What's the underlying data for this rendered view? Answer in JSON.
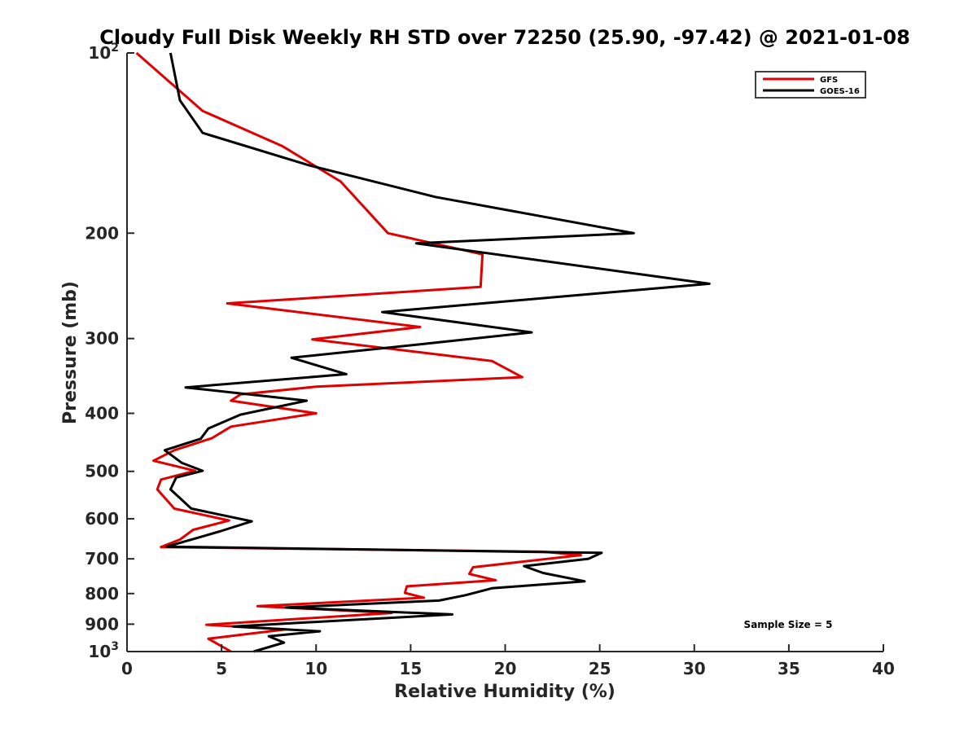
{
  "chart_data": {
    "type": "line",
    "title": "Cloudy Full Disk Weekly RH STD over 72250 (25.90, -97.42) @ 2021-01-08",
    "xlabel": "Relative Humidity (%)",
    "ylabel": "Pressure (mb)",
    "xlim": [
      0,
      40
    ],
    "ylim": [
      100,
      1000
    ],
    "yscale": "log",
    "y_reversed": true,
    "grid": false,
    "legend_position": "top-right",
    "x_ticks": [
      "0",
      "5",
      "10",
      "15",
      "20",
      "25",
      "30",
      "35",
      "40"
    ],
    "y_ticks": [
      {
        "value": 100,
        "base": "10",
        "exp": "2"
      },
      {
        "value": 200,
        "label": "200"
      },
      {
        "value": 300,
        "label": "300"
      },
      {
        "value": 400,
        "label": "400"
      },
      {
        "value": 500,
        "label": "500"
      },
      {
        "value": 600,
        "label": "600"
      },
      {
        "value": 700,
        "label": "700"
      },
      {
        "value": 800,
        "label": "800"
      },
      {
        "value": 900,
        "label": "900"
      },
      {
        "value": 1000,
        "base": "10",
        "exp": "3"
      }
    ],
    "annotation": "Sample Size = 5",
    "series": [
      {
        "name": "GFS",
        "color": "#e00000",
        "points": [
          [
            0.5,
            100
          ],
          [
            4.0,
            125
          ],
          [
            8.2,
            143
          ],
          [
            11.3,
            164
          ],
          [
            13.8,
            200
          ],
          [
            18.8,
            217
          ],
          [
            18.7,
            246
          ],
          [
            5.3,
            262
          ],
          [
            15.5,
            287
          ],
          [
            9.8,
            301
          ],
          [
            19.3,
            327
          ],
          [
            20.9,
            348
          ],
          [
            10.0,
            361
          ],
          [
            6.0,
            372
          ],
          [
            5.5,
            381
          ],
          [
            10.0,
            400
          ],
          [
            5.5,
            421
          ],
          [
            4.5,
            440
          ],
          [
            2.5,
            461
          ],
          [
            1.4,
            480
          ],
          [
            3.6,
            499
          ],
          [
            1.8,
            516
          ],
          [
            1.6,
            536
          ],
          [
            2.5,
            577
          ],
          [
            5.4,
            604
          ],
          [
            3.5,
            626
          ],
          [
            2.8,
            650
          ],
          [
            1.8,
            669
          ],
          [
            22.0,
            681
          ],
          [
            24.0,
            690
          ],
          [
            18.3,
            723
          ],
          [
            18.1,
            742
          ],
          [
            19.5,
            760
          ],
          [
            14.8,
            778
          ],
          [
            14.7,
            798
          ],
          [
            15.7,
            813
          ],
          [
            6.9,
            840
          ],
          [
            14.0,
            862
          ],
          [
            4.2,
            902
          ],
          [
            8.4,
            918
          ],
          [
            4.3,
            952
          ],
          [
            5.5,
            1000
          ]
        ]
      },
      {
        "name": "GOES-16",
        "color": "#000000",
        "points": [
          [
            2.3,
            100
          ],
          [
            2.8,
            120
          ],
          [
            4.0,
            136
          ],
          [
            9.6,
            154
          ],
          [
            16.3,
            174
          ],
          [
            26.8,
            200
          ],
          [
            15.3,
            208
          ],
          [
            30.8,
            243
          ],
          [
            13.5,
            271
          ],
          [
            21.4,
            293
          ],
          [
            15.8,
            306
          ],
          [
            8.7,
            323
          ],
          [
            11.6,
            344
          ],
          [
            3.1,
            362
          ],
          [
            9.5,
            381
          ],
          [
            6.0,
            402
          ],
          [
            4.3,
            424
          ],
          [
            3.9,
            441
          ],
          [
            2.0,
            461
          ],
          [
            2.9,
            484
          ],
          [
            4.0,
            499
          ],
          [
            2.6,
            512
          ],
          [
            2.3,
            536
          ],
          [
            3.4,
            577
          ],
          [
            6.6,
            606
          ],
          [
            4.9,
            630
          ],
          [
            2.1,
            668
          ],
          [
            25.1,
            684
          ],
          [
            24.4,
            700
          ],
          [
            21.0,
            720
          ],
          [
            22.0,
            739
          ],
          [
            24.2,
            763
          ],
          [
            19.3,
            784
          ],
          [
            17.9,
            805
          ],
          [
            16.5,
            822
          ],
          [
            8.4,
            844
          ],
          [
            17.2,
            867
          ],
          [
            5.6,
            908
          ],
          [
            10.2,
            925
          ],
          [
            7.5,
            943
          ],
          [
            8.3,
            966
          ],
          [
            6.7,
            1000
          ]
        ]
      }
    ]
  }
}
